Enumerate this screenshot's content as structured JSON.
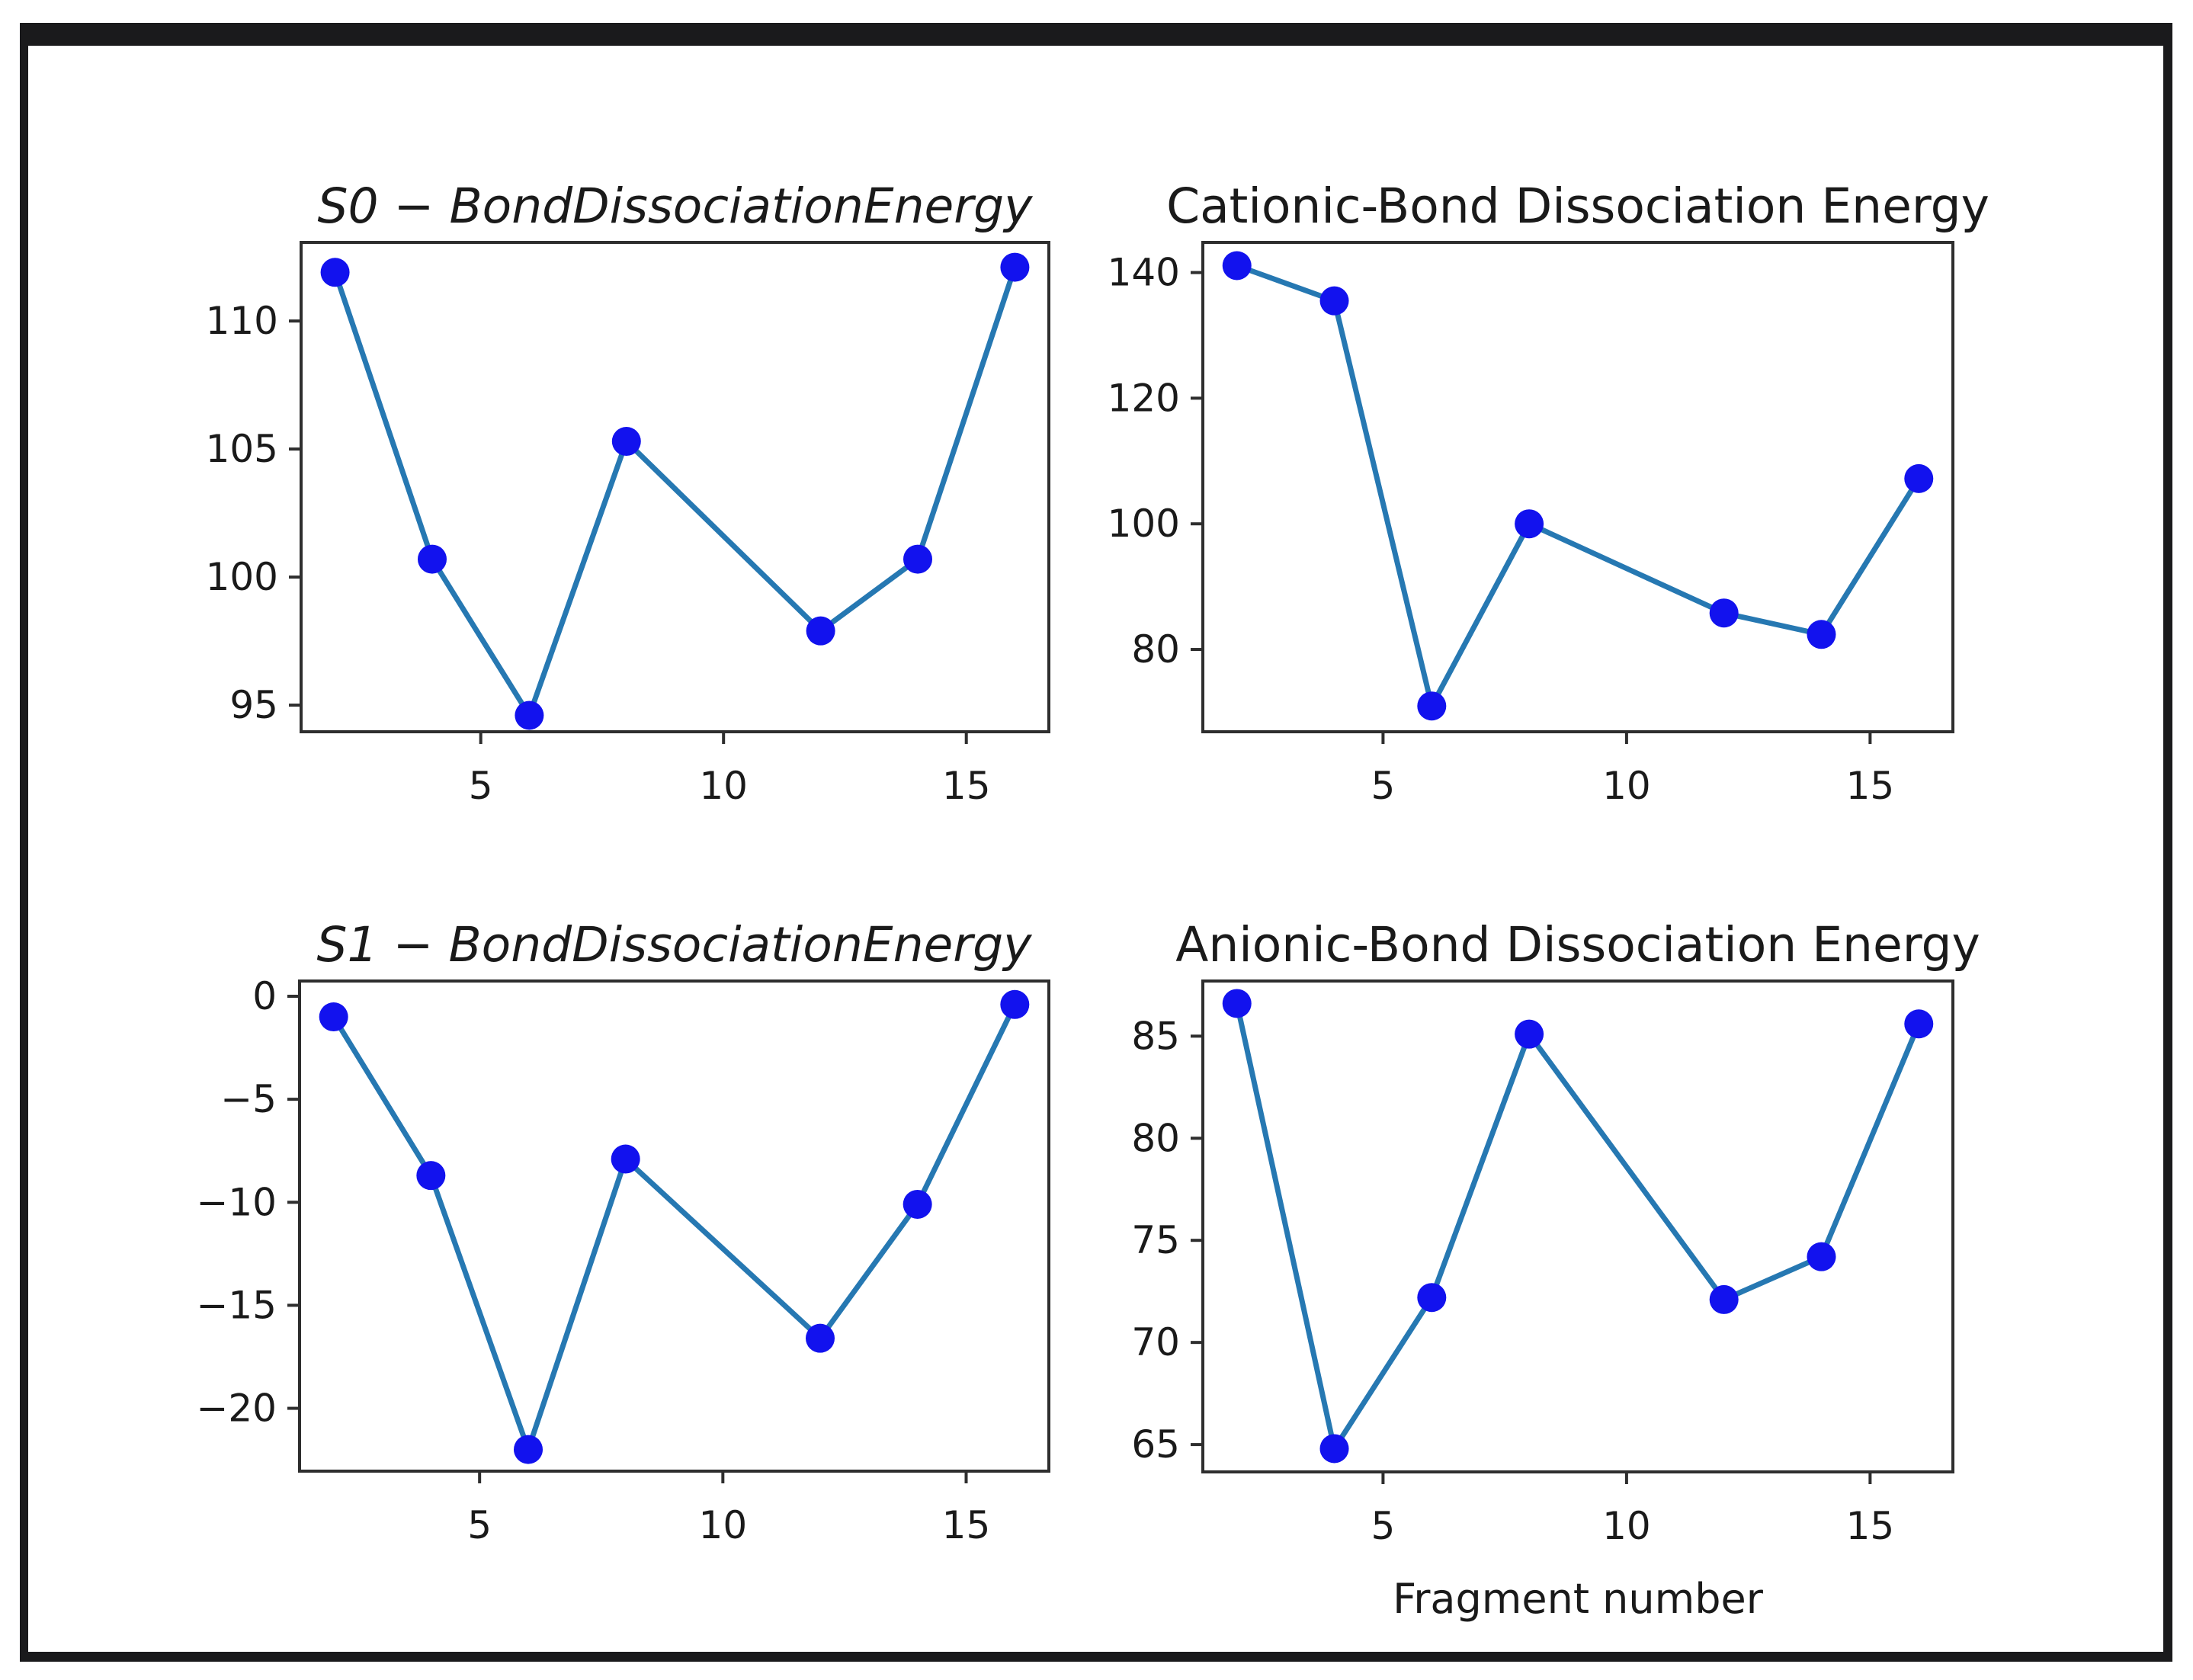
{
  "figure": {
    "background": "#ffffff",
    "frame_color": "#1a1a1c",
    "line_color": "#2678b2",
    "marker_color": "#1212ee",
    "spine_color": "#2e2e2e",
    "text_color": "#1a1a1a"
  },
  "chart_data": [
    {
      "type": "line",
      "title": "S0 − BondDissociationEnergy",
      "title_italic": true,
      "x": [
        2,
        4,
        6,
        8,
        12,
        14,
        16
      ],
      "y": [
        111.9,
        100.7,
        94.6,
        105.3,
        97.9,
        100.7,
        112.1
      ],
      "x_ticks": [
        5,
        10,
        15
      ],
      "y_ticks": [
        110,
        105,
        100,
        95
      ],
      "xlim": [
        1.3,
        16.7
      ],
      "ylim": [
        93.96,
        113.07
      ],
      "xlabel": "",
      "grid": false,
      "legend": null
    },
    {
      "type": "line",
      "title": "Cationic-Bond Dissociation Energy",
      "title_italic": false,
      "x": [
        2,
        4,
        6,
        8,
        12,
        14,
        16
      ],
      "y": [
        141.1,
        135.5,
        71.0,
        100.0,
        85.8,
        82.4,
        107.2
      ],
      "x_ticks": [
        5,
        10,
        15
      ],
      "y_ticks": [
        140,
        120,
        100,
        80
      ],
      "xlim": [
        1.3,
        16.7
      ],
      "ylim": [
        66.9,
        144.8
      ],
      "xlabel": "",
      "grid": false,
      "legend": null
    },
    {
      "type": "line",
      "title": "S1 − BondDissociationEnergy",
      "title_italic": true,
      "x": [
        2,
        4,
        6,
        8,
        12,
        14,
        16
      ],
      "y": [
        -1.0,
        -8.7,
        -22.0,
        -7.9,
        -16.6,
        -10.1,
        -0.4
      ],
      "x_ticks": [
        5,
        10,
        15
      ],
      "y_ticks": [
        0,
        -5,
        -10,
        -15,
        -20
      ],
      "xlim": [
        1.3,
        16.7
      ],
      "ylim": [
        -23.05,
        0.74
      ],
      "xlabel": "",
      "grid": false,
      "legend": null
    },
    {
      "type": "line",
      "title": "Anionic-Bond Dissociation Energy",
      "title_italic": false,
      "x": [
        2,
        4,
        6,
        8,
        12,
        14,
        16
      ],
      "y": [
        86.6,
        64.8,
        72.2,
        85.1,
        72.1,
        74.2,
        85.6
      ],
      "x_ticks": [
        5,
        10,
        15
      ],
      "y_ticks": [
        85,
        80,
        75,
        70,
        65
      ],
      "xlim": [
        1.3,
        16.7
      ],
      "ylim": [
        63.66,
        87.7
      ],
      "xlabel": "Fragment number",
      "grid": false,
      "legend": null
    }
  ]
}
